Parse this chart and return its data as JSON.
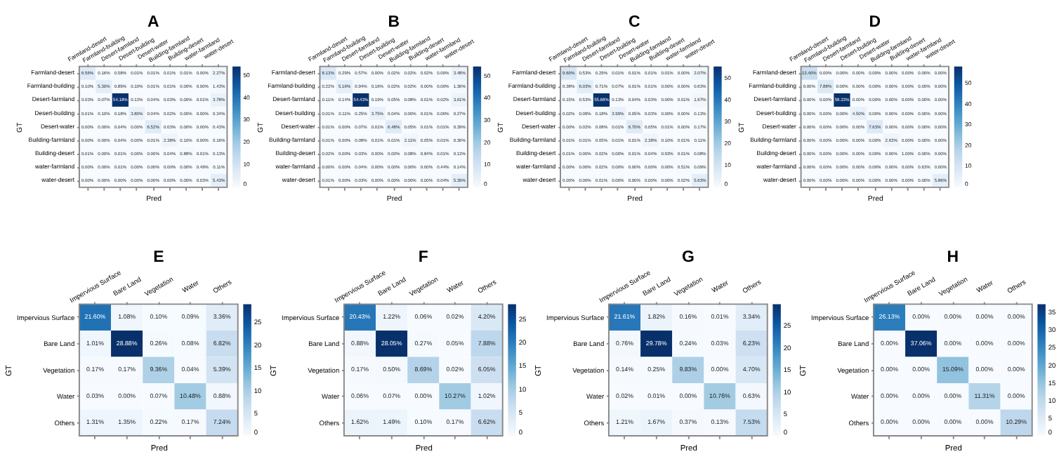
{
  "chart_data": [
    {
      "type": "heatmap",
      "title": "A",
      "xlabel": "Pred",
      "ylabel": "GT",
      "categories": [
        "Farmland-desert",
        "Farmland-building",
        "Desert-farmland",
        "Desert-building",
        "Desert-water",
        "Building-farmland",
        "Building-desert",
        "water-farmland",
        "water-desert"
      ],
      "y_categories": [
        "Farmland-desert",
        "Farmland-building",
        "Desert-farmland",
        "Desert-building",
        "Desert-water",
        "Building-farmland",
        "Building-desert",
        "water-farmland",
        "water-desert"
      ],
      "cells": [
        [
          6.56,
          0.16,
          0.58,
          0.01,
          0.01,
          0.01,
          0.01,
          0.0,
          2.27
        ],
        [
          0.1,
          5.3,
          0.89,
          0.1,
          0.01,
          0.01,
          0.0,
          0.0,
          1.43
        ],
        [
          0.03,
          0.07,
          54.18,
          0.13,
          0.04,
          0.03,
          0.0,
          0.01,
          3.78
        ],
        [
          0.01,
          0.1,
          0.18,
          3.8,
          0.04,
          0.02,
          0.0,
          0.0,
          0.34
        ],
        [
          0.0,
          0.0,
          0.04,
          0.0,
          6.52,
          0.03,
          0.0,
          0.0,
          0.43
        ],
        [
          0.0,
          0.0,
          0.04,
          0.0,
          0.01,
          2.38,
          0.1,
          0.0,
          0.16
        ],
        [
          0.01,
          0.0,
          0.01,
          0.0,
          0.0,
          0.04,
          0.88,
          0.01,
          0.13
        ],
        [
          0.0,
          0.0,
          0.01,
          0.0,
          0.0,
          0.0,
          0.0,
          0.49,
          0.11
        ],
        [
          0.0,
          0.0,
          0.0,
          0.0,
          0.0,
          0.0,
          0.0,
          0.03,
          5.43
        ]
      ],
      "cell_labels": [
        [
          "6.56%",
          "0.16%",
          "0.58%",
          "0.01%",
          "0.01%",
          "0.01%",
          "0.01%",
          "0.00%",
          "2.27%"
        ],
        [
          "0.10%",
          "5.30%",
          "0.89%",
          "0.10%",
          "0.01%",
          "0.01%",
          "0.00%",
          "0.00%",
          "1.43%"
        ],
        [
          "0.03%",
          "0.07%",
          "54.18%",
          "0.13%",
          "0.04%",
          "0.03%",
          "0.00%",
          "0.01%",
          "3.78%"
        ],
        [
          "0.01%",
          "0.10%",
          "0.18%",
          "3.80%",
          "0.04%",
          "0.02%",
          "0.00%",
          "0.00%",
          "0.34%"
        ],
        [
          "0.00%",
          "0.00%",
          "0.04%",
          "0.00%",
          "6.52%",
          "0.03%",
          "0.00%",
          "0.00%",
          "0.43%"
        ],
        [
          "0.00%",
          "0.00%",
          "0.04%",
          "0.00%",
          "0.01%",
          "2.38%",
          "0.10%",
          "0.00%",
          "0.16%"
        ],
        [
          "0.01%",
          "0.00%",
          "0.01%",
          "0.00%",
          "0.00%",
          "0.04%",
          "0.88%",
          "0.01%",
          "0.13%"
        ],
        [
          "0.00%",
          "0.00%",
          "0.01%",
          "0.00%",
          "0.00%",
          "0.00%",
          "0.00%",
          "0.49%",
          "0.11%"
        ],
        [
          "0.00%",
          "0.00%",
          "0.00%",
          "0.00%",
          "0.00%",
          "0.00%",
          "0.00%",
          "0.03%",
          "5.43%"
        ]
      ],
      "clim": [
        0,
        54.18
      ],
      "cticks": [
        0,
        10,
        20,
        30,
        40,
        50
      ]
    },
    {
      "type": "heatmap",
      "title": "B",
      "xlabel": "Pred",
      "ylabel": "GT",
      "categories": [
        "Farmland-desert",
        "Farmland-building",
        "Desert-farmland",
        "Desert-building",
        "Desert-water",
        "Building-farmland",
        "Building-desert",
        "water-farmland",
        "water-desert"
      ],
      "y_categories": [
        "Farmland-desert",
        "Farmland-building",
        "Desert-farmland",
        "Desert-building",
        "Desert-water",
        "Building-farmland",
        "Building-desert",
        "water-farmland",
        "water-desert"
      ],
      "cells": [
        [
          8.13,
          0.29,
          0.57,
          0.0,
          0.02,
          0.02,
          0.02,
          0.0,
          3.48
        ],
        [
          0.22,
          5.16,
          0.94,
          0.16,
          0.02,
          0.02,
          0.0,
          0.0,
          1.36
        ],
        [
          0.11,
          0.14,
          54.43,
          0.19,
          0.05,
          0.08,
          0.01,
          0.02,
          3.01
        ],
        [
          0.01,
          0.11,
          0.25,
          3.75,
          0.04,
          0.0,
          0.01,
          0.0,
          0.27
        ],
        [
          0.01,
          0.0,
          0.07,
          0.01,
          6.48,
          0.05,
          0.01,
          0.01,
          0.39
        ],
        [
          0.01,
          0.0,
          0.08,
          0.01,
          0.01,
          2.11,
          0.05,
          0.01,
          0.36
        ],
        [
          0.02,
          0.0,
          0.03,
          0.0,
          0.0,
          0.08,
          0.84,
          0.01,
          0.13
        ],
        [
          0.0,
          0.0,
          0.04,
          0.0,
          0.0,
          0.0,
          0.0,
          0.44,
          0.14
        ],
        [
          0.01,
          0.0,
          0.03,
          0.0,
          0.0,
          0.0,
          0.0,
          0.04,
          5.39
        ]
      ],
      "cell_labels": [
        [
          "8.13%",
          "0.29%",
          "0.57%",
          "0.00%",
          "0.02%",
          "0.02%",
          "0.02%",
          "0.00%",
          "3.48%"
        ],
        [
          "0.22%",
          "5.16%",
          "0.94%",
          "0.16%",
          "0.02%",
          "0.02%",
          "0.00%",
          "0.00%",
          "1.36%"
        ],
        [
          "0.11%",
          "0.14%",
          "54.43%",
          "0.19%",
          "0.05%",
          "0.08%",
          "0.01%",
          "0.02%",
          "3.01%"
        ],
        [
          "0.01%",
          "0.11%",
          "0.25%",
          "3.75%",
          "0.04%",
          "0.00%",
          "0.01%",
          "0.00%",
          "0.27%"
        ],
        [
          "0.01%",
          "0.00%",
          "0.07%",
          "0.01%",
          "6.48%",
          "0.05%",
          "0.01%",
          "0.01%",
          "0.39%"
        ],
        [
          "0.01%",
          "0.00%",
          "0.08%",
          "0.01%",
          "0.01%",
          "2.11%",
          "0.05%",
          "0.01%",
          "0.36%"
        ],
        [
          "0.02%",
          "0.00%",
          "0.03%",
          "0.00%",
          "0.00%",
          "0.08%",
          "0.84%",
          "0.01%",
          "0.13%"
        ],
        [
          "0.00%",
          "0.00%",
          "0.04%",
          "0.00%",
          "0.00%",
          "0.00%",
          "0.00%",
          "0.44%",
          "0.14%"
        ],
        [
          "0.01%",
          "0.00%",
          "0.03%",
          "0.00%",
          "0.00%",
          "0.00%",
          "0.00%",
          "0.04%",
          "5.39%"
        ]
      ],
      "clim": [
        0,
        54.43
      ],
      "cticks": [
        0,
        10,
        20,
        30,
        40,
        50
      ]
    },
    {
      "type": "heatmap",
      "title": "C",
      "xlabel": "Pred",
      "ylabel": "GT",
      "categories": [
        "Farmland-desert",
        "Farmland-building",
        "Desert-farmland",
        "Desert-building",
        "Desert-water",
        "Building-farmland",
        "Building-desert",
        "water-farmland",
        "water-desert"
      ],
      "y_categories": [
        "Farmland-desert",
        "Farmland-building",
        "Desert-farmland",
        "Desert-building",
        "Desert-water",
        "Building-farmland",
        "Building-desert",
        "water-farmland",
        "water-desert"
      ],
      "cells": [
        [
          9.6,
          0.53,
          0.29,
          0.01,
          0.01,
          0.01,
          0.01,
          0.0,
          2.07
        ],
        [
          0.38,
          6.03,
          0.71,
          0.07,
          0.01,
          0.01,
          0.0,
          0.0,
          0.63
        ],
        [
          0.15,
          0.53,
          55.68,
          0.13,
          0.04,
          0.03,
          0.0,
          0.01,
          1.67
        ],
        [
          0.02,
          0.09,
          0.18,
          3.99,
          0.05,
          0.03,
          0.0,
          0.0,
          0.13
        ],
        [
          0.0,
          0.02,
          0.08,
          0.01,
          6.7,
          0.05,
          0.01,
          0.0,
          0.17
        ],
        [
          0.01,
          0.01,
          0.05,
          0.01,
          0.01,
          2.38,
          0.1,
          0.01,
          0.11
        ],
        [
          0.01,
          0.0,
          0.02,
          0.0,
          0.01,
          0.04,
          0.93,
          0.01,
          0.08
        ],
        [
          0.0,
          0.0,
          0.02,
          0.0,
          0.0,
          0.0,
          0.0,
          0.51,
          0.09
        ],
        [
          0.0,
          0.0,
          0.01,
          0.0,
          0.0,
          0.0,
          0.0,
          0.02,
          5.63
        ]
      ],
      "cell_labels": [
        [
          "9.60%",
          "0.53%",
          "0.29%",
          "0.01%",
          "0.01%",
          "0.01%",
          "0.01%",
          "0.00%",
          "2.07%"
        ],
        [
          "0.38%",
          "6.03%",
          "0.71%",
          "0.07%",
          "0.01%",
          "0.01%",
          "0.00%",
          "0.00%",
          "0.63%"
        ],
        [
          "0.15%",
          "0.53%",
          "55.68%",
          "0.13%",
          "0.04%",
          "0.03%",
          "0.00%",
          "0.01%",
          "1.67%"
        ],
        [
          "0.02%",
          "0.09%",
          "0.18%",
          "3.99%",
          "0.05%",
          "0.03%",
          "0.00%",
          "0.00%",
          "0.13%"
        ],
        [
          "0.00%",
          "0.02%",
          "0.08%",
          "0.01%",
          "6.70%",
          "0.05%",
          "0.01%",
          "0.00%",
          "0.17%"
        ],
        [
          "0.01%",
          "0.01%",
          "0.05%",
          "0.01%",
          "0.01%",
          "2.38%",
          "0.10%",
          "0.01%",
          "0.11%"
        ],
        [
          "0.01%",
          "0.00%",
          "0.02%",
          "0.00%",
          "0.01%",
          "0.04%",
          "0.93%",
          "0.01%",
          "0.08%"
        ],
        [
          "0.00%",
          "0.00%",
          "0.02%",
          "0.00%",
          "0.00%",
          "0.00%",
          "0.00%",
          "0.51%",
          "0.09%"
        ],
        [
          "0.00%",
          "0.00%",
          "0.01%",
          "0.00%",
          "0.00%",
          "0.00%",
          "0.00%",
          "0.02%",
          "5.63%"
        ]
      ],
      "clim": [
        0,
        55.68
      ],
      "cticks": [
        0,
        10,
        20,
        30,
        40,
        50
      ]
    },
    {
      "type": "heatmap",
      "title": "D",
      "xlabel": "Pred",
      "ylabel": "GT",
      "categories": [
        "Farmland-desert",
        "Farmland-building",
        "Desert-farmland",
        "Desert-building",
        "Desert-water",
        "Building-farmland",
        "Building-desert",
        "water-farmland",
        "water-desert"
      ],
      "y_categories": [
        "Farmland-desert",
        "Farmland-building",
        "Desert-farmland",
        "Desert-building",
        "Desert-water",
        "Building-farmland",
        "Building-desert",
        "water-farmland",
        "water-desert"
      ],
      "cells": [
        [
          13.4,
          0,
          0,
          0,
          0,
          0,
          0,
          0,
          0
        ],
        [
          0,
          7.88,
          0,
          0,
          0,
          0,
          0,
          0,
          0
        ],
        [
          0,
          0,
          58.33,
          0,
          0,
          0,
          0,
          0,
          0
        ],
        [
          0,
          0,
          0,
          4.5,
          0,
          0,
          0,
          0,
          0
        ],
        [
          0,
          0,
          0,
          0,
          7.63,
          0,
          0,
          0,
          0
        ],
        [
          0,
          0,
          0,
          0,
          0,
          2.63,
          0,
          0,
          0
        ],
        [
          0,
          0,
          0,
          0,
          0,
          0,
          1.0,
          0,
          0
        ],
        [
          0,
          0,
          0,
          0,
          0,
          0,
          0,
          0.63,
          0
        ],
        [
          0,
          0,
          0,
          0,
          0,
          0,
          0,
          0,
          5.86
        ]
      ],
      "cell_labels": [
        [
          "13.40%",
          "0.00%",
          "0.00%",
          "0.00%",
          "0.00%",
          "0.00%",
          "0.00%",
          "0.00%",
          "0.00%"
        ],
        [
          "0.00%",
          "7.88%",
          "0.00%",
          "0.00%",
          "0.00%",
          "0.00%",
          "0.00%",
          "0.00%",
          "0.00%"
        ],
        [
          "0.00%",
          "0.00%",
          "58.33%",
          "0.00%",
          "0.00%",
          "0.00%",
          "0.00%",
          "0.00%",
          "0.00%"
        ],
        [
          "0.00%",
          "0.00%",
          "0.00%",
          "4.50%",
          "0.00%",
          "0.00%",
          "0.00%",
          "0.00%",
          "0.00%"
        ],
        [
          "0.00%",
          "0.00%",
          "0.00%",
          "0.00%",
          "7.63%",
          "0.00%",
          "0.00%",
          "0.00%",
          "0.00%"
        ],
        [
          "0.00%",
          "0.00%",
          "0.00%",
          "0.00%",
          "0.00%",
          "2.63%",
          "0.00%",
          "0.00%",
          "0.00%"
        ],
        [
          "0.00%",
          "0.00%",
          "0.00%",
          "0.00%",
          "0.00%",
          "0.00%",
          "1.00%",
          "0.00%",
          "0.00%"
        ],
        [
          "0.00%",
          "0.00%",
          "0.00%",
          "0.00%",
          "0.00%",
          "0.00%",
          "0.00%",
          "0.63%",
          "0.00%"
        ],
        [
          "0.00%",
          "0.00%",
          "0.00%",
          "0.00%",
          "0.00%",
          "0.00%",
          "0.00%",
          "0.00%",
          "5.86%"
        ]
      ],
      "clim": [
        0,
        58.33
      ],
      "cticks": [
        0,
        10,
        20,
        30,
        40,
        50
      ]
    },
    {
      "type": "heatmap",
      "title": "E",
      "xlabel": "Pred",
      "ylabel": "GT",
      "categories": [
        "Impervious Surface",
        "Bare Land",
        "Vegetation",
        "Water",
        "Others"
      ],
      "y_categories": [
        "Impervious Surface",
        "Bare Land",
        "Vegetation",
        "Water",
        "Others"
      ],
      "cells": [
        [
          21.6,
          1.08,
          0.1,
          0.09,
          3.36
        ],
        [
          1.01,
          28.88,
          0.26,
          0.08,
          6.82
        ],
        [
          0.17,
          0.17,
          9.36,
          0.04,
          5.39
        ],
        [
          0.03,
          0.0,
          0.07,
          10.48,
          0.88
        ],
        [
          1.31,
          1.35,
          0.22,
          0.17,
          7.24
        ]
      ],
      "cell_labels": [
        [
          "21.60%",
          "1.08%",
          "0.10%",
          "0.09%",
          "3.36%"
        ],
        [
          "1.01%",
          "28.88%",
          "0.26%",
          "0.08%",
          "6.82%"
        ],
        [
          "0.17%",
          "0.17%",
          "9.36%",
          "0.04%",
          "5.39%"
        ],
        [
          "0.03%",
          "0.00%",
          "0.07%",
          "10.48%",
          "0.88%"
        ],
        [
          "1.31%",
          "1.35%",
          "0.22%",
          "0.17%",
          "7.24%"
        ]
      ],
      "clim": [
        0,
        28.88
      ],
      "cticks": [
        0,
        5,
        10,
        15,
        20,
        25
      ]
    },
    {
      "type": "heatmap",
      "title": "F",
      "xlabel": "Pred",
      "ylabel": "GT",
      "categories": [
        "Impervious Surface",
        "Bare Land",
        "Vegetation",
        "Water",
        "Others"
      ],
      "y_categories": [
        "Impervious Surface",
        "Bare Land",
        "Vegetation",
        "Water",
        "Others"
      ],
      "cells": [
        [
          20.43,
          1.22,
          0.06,
          0.02,
          4.2
        ],
        [
          0.88,
          28.05,
          0.27,
          0.05,
          7.88
        ],
        [
          0.17,
          0.5,
          8.69,
          0.02,
          6.05
        ],
        [
          0.06,
          0.07,
          0.0,
          10.27,
          1.02
        ],
        [
          1.62,
          1.49,
          0.1,
          0.17,
          6.62
        ]
      ],
      "cell_labels": [
        [
          "20.43%",
          "1.22%",
          "0.06%",
          "0.02%",
          "4.20%"
        ],
        [
          "0.88%",
          "28.05%",
          "0.27%",
          "0.05%",
          "7.88%"
        ],
        [
          "0.17%",
          "0.50%",
          "8.69%",
          "0.02%",
          "6.05%"
        ],
        [
          "0.06%",
          "0.07%",
          "0.00%",
          "10.27%",
          "1.02%"
        ],
        [
          "1.62%",
          "1.49%",
          "0.10%",
          "0.17%",
          "6.62%"
        ]
      ],
      "clim": [
        0,
        28.05
      ],
      "cticks": [
        0,
        5,
        10,
        15,
        20,
        25
      ]
    },
    {
      "type": "heatmap",
      "title": "G",
      "xlabel": "Pred",
      "ylabel": "GT",
      "categories": [
        "Impervious Surface",
        "Bare Land",
        "Vegetation",
        "Water",
        "Others"
      ],
      "y_categories": [
        "Impervious Surface",
        "Bare Land",
        "Vegetation",
        "Water",
        "Others"
      ],
      "cells": [
        [
          21.61,
          1.82,
          0.16,
          0.01,
          3.34
        ],
        [
          0.76,
          29.78,
          0.24,
          0.03,
          6.23
        ],
        [
          0.14,
          0.25,
          9.83,
          0.0,
          4.7
        ],
        [
          0.02,
          0.01,
          0.0,
          10.76,
          0.63
        ],
        [
          1.21,
          1.67,
          0.37,
          0.13,
          7.53
        ]
      ],
      "cell_labels": [
        [
          "21.61%",
          "1.82%",
          "0.16%",
          "0.01%",
          "3.34%"
        ],
        [
          "0.76%",
          "29.78%",
          "0.24%",
          "0.03%",
          "6.23%"
        ],
        [
          "0.14%",
          "0.25%",
          "9.83%",
          "0.00%",
          "4.70%"
        ],
        [
          "0.02%",
          "0.01%",
          "0.00%",
          "10.76%",
          "0.63%"
        ],
        [
          "1.21%",
          "1.67%",
          "0.37%",
          "0.13%",
          "7.53%"
        ]
      ],
      "clim": [
        0,
        29.78
      ],
      "cticks": [
        0,
        5,
        10,
        15,
        20,
        25
      ]
    },
    {
      "type": "heatmap",
      "title": "H",
      "xlabel": "Pred",
      "ylabel": "GT",
      "categories": [
        "Impervious Surface",
        "Bare Land",
        "Vegetation",
        "Water",
        "Others"
      ],
      "y_categories": [
        "Impervious Surface",
        "Bare Land",
        "Vegetation",
        "Water",
        "Others"
      ],
      "cells": [
        [
          26.13,
          0,
          0,
          0,
          0
        ],
        [
          0,
          37.06,
          0,
          0,
          0
        ],
        [
          0,
          0,
          15.09,
          0,
          0
        ],
        [
          0,
          0,
          0,
          11.31,
          0
        ],
        [
          0,
          0,
          0,
          0,
          10.29
        ]
      ],
      "cell_labels": [
        [
          "26.13%",
          "0.00%",
          "0.00%",
          "0.00%",
          "0.00%"
        ],
        [
          "0.00%",
          "37.06%",
          "0.00%",
          "0.00%",
          "0.00%"
        ],
        [
          "0.00%",
          "0.00%",
          "15.09%",
          "0.00%",
          "0.00%"
        ],
        [
          "0.00%",
          "0.00%",
          "0.00%",
          "11.31%",
          "0.00%"
        ],
        [
          "0.00%",
          "0.00%",
          "0.00%",
          "0.00%",
          "10.29%"
        ]
      ],
      "clim": [
        0,
        37.06
      ],
      "cticks": [
        0,
        5,
        10,
        15,
        20,
        25,
        30,
        35
      ]
    }
  ]
}
